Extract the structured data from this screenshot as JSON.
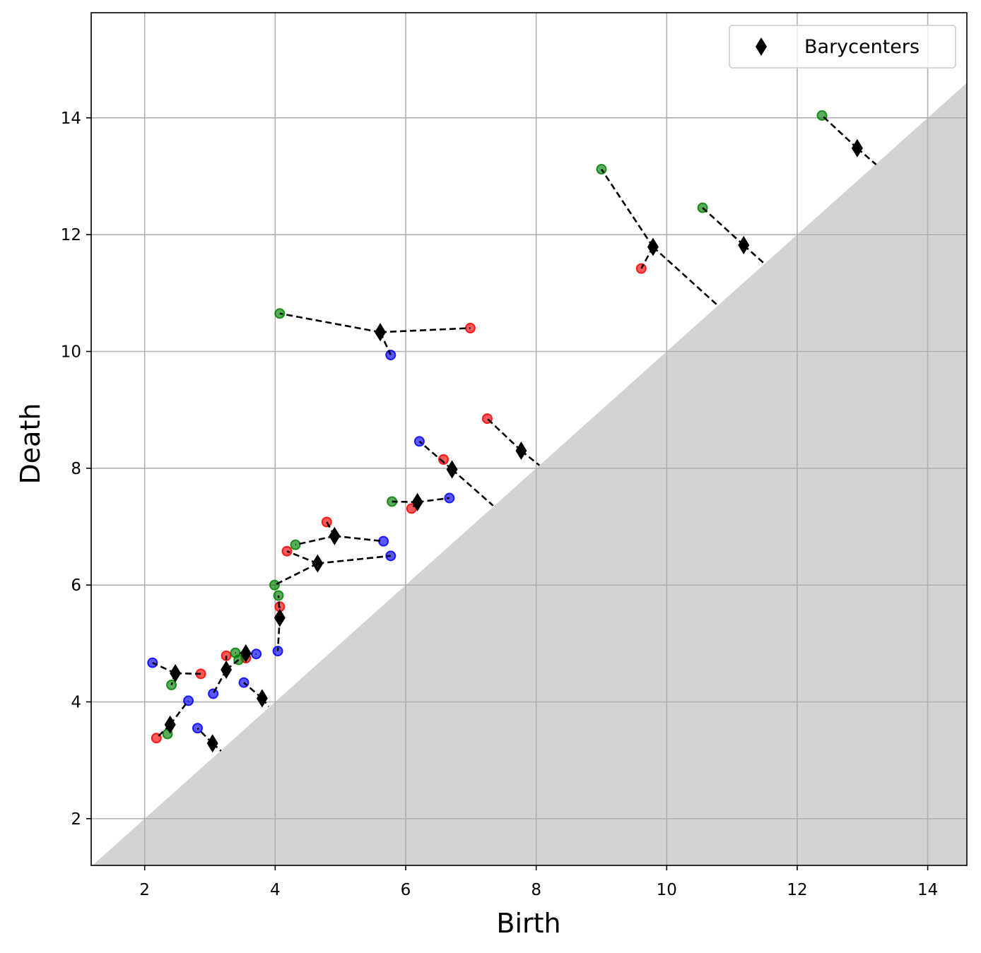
{
  "chart_data": {
    "type": "scatter",
    "xlabel": "Birth",
    "ylabel": "Death",
    "xlim": [
      1.18,
      14.6
    ],
    "ylim": [
      1.2,
      15.8
    ],
    "xticks": [
      2,
      4,
      6,
      8,
      10,
      12,
      14
    ],
    "yticks": [
      2,
      4,
      6,
      8,
      10,
      12,
      14
    ],
    "grid": true,
    "legend": "upper right",
    "diagonal_fill": "#d3d3d3",
    "point_alpha": 0.65,
    "series": [
      {
        "color": "#ff0000",
        "marker": "circle",
        "x": [
          9.61,
          6.99,
          7.25,
          6.58,
          6.09,
          4.79,
          4.18,
          4.07,
          3.25,
          3.55,
          2.86,
          2.18
        ],
        "y": [
          11.42,
          10.4,
          8.85,
          8.15,
          7.31,
          7.08,
          6.58,
          5.63,
          4.79,
          4.75,
          4.48,
          3.38
        ]
      },
      {
        "color": "#008000",
        "marker": "circle",
        "x": [
          12.38,
          9.0,
          10.55,
          4.07,
          5.79,
          4.31,
          3.99,
          4.05,
          3.39,
          3.44,
          2.41,
          2.35
        ],
        "y": [
          14.04,
          13.12,
          12.46,
          10.65,
          7.43,
          6.69,
          6.0,
          5.82,
          4.84,
          4.72,
          4.29,
          3.45
        ]
      },
      {
        "color": "#0000ff",
        "marker": "circle",
        "x": [
          5.77,
          6.21,
          6.67,
          5.66,
          5.77,
          4.04,
          3.71,
          2.12,
          3.52,
          3.05,
          2.67,
          2.81
        ],
        "y": [
          9.94,
          8.46,
          7.49,
          6.75,
          6.5,
          4.87,
          4.82,
          4.67,
          4.33,
          4.14,
          4.02,
          3.55
        ]
      },
      {
        "name": "Barycenters",
        "color": "#000000",
        "marker": "diamond",
        "x": [
          12.92,
          9.79,
          11.18,
          5.61,
          7.77,
          6.71,
          6.18,
          4.91,
          4.65,
          4.07,
          3.55,
          2.47,
          3.25,
          3.8,
          2.39,
          3.04
        ],
        "y": [
          13.48,
          11.79,
          11.82,
          10.33,
          8.3,
          7.98,
          7.42,
          6.84,
          6.37,
          5.44,
          4.83,
          4.49,
          4.55,
          4.06,
          3.61,
          3.29
        ]
      }
    ],
    "matchings": [
      [
        12.92,
        13.48,
        12.38,
        14.04
      ],
      [
        12.92,
        13.48,
        13.21,
        13.2
      ],
      [
        9.79,
        11.79,
        9.0,
        13.12
      ],
      [
        9.79,
        11.79,
        9.61,
        11.42
      ],
      [
        9.79,
        11.79,
        10.78,
        10.79
      ],
      [
        11.18,
        11.82,
        10.55,
        12.46
      ],
      [
        11.18,
        11.82,
        11.48,
        11.52
      ],
      [
        5.61,
        10.33,
        4.07,
        10.65
      ],
      [
        5.61,
        10.33,
        6.99,
        10.4
      ],
      [
        5.61,
        10.33,
        5.77,
        9.94
      ],
      [
        7.77,
        8.3,
        7.25,
        8.85
      ],
      [
        7.77,
        8.3,
        8.05,
        8.05
      ],
      [
        6.71,
        7.98,
        6.21,
        8.46
      ],
      [
        6.71,
        7.98,
        7.34,
        7.36
      ],
      [
        6.18,
        7.42,
        5.79,
        7.43
      ],
      [
        6.18,
        7.42,
        6.09,
        7.31
      ],
      [
        6.18,
        7.42,
        6.67,
        7.49
      ],
      [
        4.91,
        6.84,
        4.31,
        6.69
      ],
      [
        4.91,
        6.84,
        4.79,
        7.08
      ],
      [
        4.91,
        6.84,
        5.66,
        6.75
      ],
      [
        4.65,
        6.37,
        4.18,
        6.58
      ],
      [
        4.65,
        6.37,
        3.99,
        6.0
      ],
      [
        4.65,
        6.37,
        5.77,
        6.5
      ],
      [
        4.07,
        5.44,
        4.05,
        5.82
      ],
      [
        4.07,
        5.44,
        4.07,
        5.63
      ],
      [
        4.07,
        5.44,
        4.04,
        4.87
      ],
      [
        3.55,
        4.83,
        3.39,
        4.84
      ],
      [
        3.55,
        4.83,
        3.55,
        4.75
      ],
      [
        3.55,
        4.83,
        3.71,
        4.82
      ],
      [
        2.47,
        4.49,
        2.12,
        4.67
      ],
      [
        2.47,
        4.49,
        2.86,
        4.48
      ],
      [
        2.47,
        4.49,
        2.41,
        4.29
      ],
      [
        3.25,
        4.55,
        3.25,
        4.79
      ],
      [
        3.25,
        4.55,
        3.44,
        4.72
      ],
      [
        3.25,
        4.55,
        3.05,
        4.14
      ],
      [
        3.8,
        4.06,
        3.52,
        4.33
      ],
      [
        3.8,
        4.06,
        3.9,
        3.92
      ],
      [
        2.39,
        3.61,
        2.18,
        3.38
      ],
      [
        2.39,
        3.61,
        2.35,
        3.45
      ],
      [
        2.39,
        3.61,
        2.67,
        4.02
      ],
      [
        3.04,
        3.29,
        2.81,
        3.55
      ],
      [
        3.04,
        3.29,
        3.17,
        3.16
      ]
    ]
  }
}
